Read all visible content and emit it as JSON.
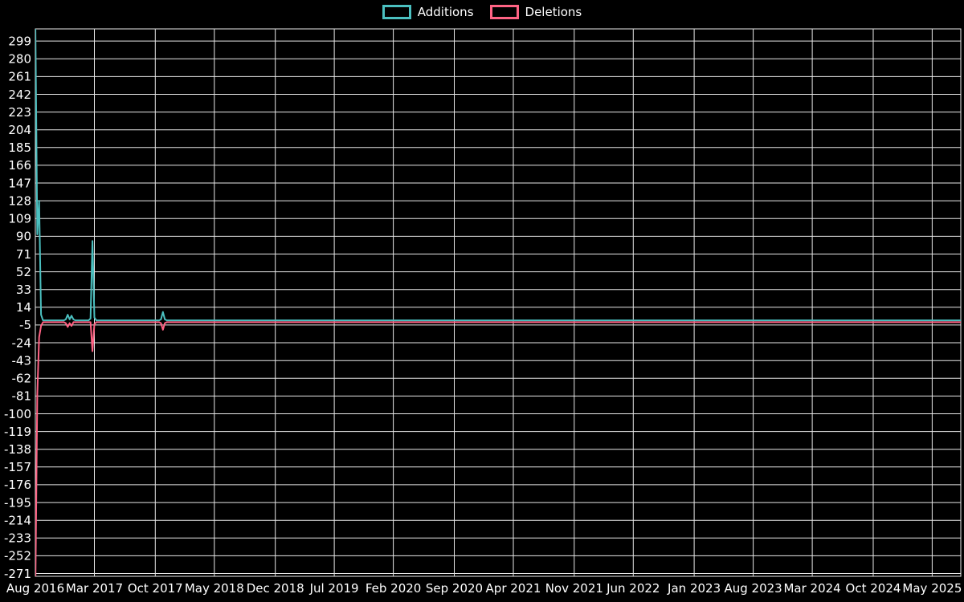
{
  "legend": {
    "items": [
      {
        "label": "Additions",
        "color": "#4bc0c0"
      },
      {
        "label": "Deletions",
        "color": "#ff6384"
      }
    ]
  },
  "chart_data": {
    "type": "line",
    "title": "",
    "xlabel": "",
    "ylabel": "",
    "background_color": "#000000",
    "grid_color": "#e8e8e8",
    "text_color": "#ffffff",
    "grid": true,
    "legend_position": "top-center",
    "x_tick_labels": [
      "Aug 2016",
      "Mar 2017",
      "Oct 2017",
      "May 2018",
      "Dec 2018",
      "Jul 2019",
      "Feb 2020",
      "Sep 2020",
      "Apr 2021",
      "Nov 2021",
      "Jun 2022",
      "Jan 2023",
      "Aug 2023",
      "Mar 2024",
      "Oct 2024",
      "May 2025"
    ],
    "y_tick_values": [
      299,
      280,
      261,
      242,
      223,
      204,
      185,
      166,
      147,
      128,
      109,
      90,
      71,
      52,
      33,
      14,
      -5,
      -24,
      -43,
      -62,
      -81,
      -100,
      -119,
      -138,
      -157,
      -176,
      -195,
      -214,
      -233,
      -252,
      -271
    ],
    "y_axis": {
      "min": -274,
      "max": 312
    },
    "x_axis": {
      "unit": "week",
      "n_points": 487,
      "tick_point_indices": [
        0,
        31,
        63,
        94,
        126,
        157,
        188,
        220,
        251,
        283,
        314,
        346,
        377,
        408,
        440,
        471
      ]
    },
    "series": [
      {
        "name": "Additions",
        "color": "#4bc0c0",
        "baseline": 0,
        "points": [
          [
            0,
            320
          ],
          [
            1,
            92
          ],
          [
            2,
            128
          ],
          [
            3,
            6
          ],
          [
            16,
            1
          ],
          [
            17,
            6
          ],
          [
            18,
            1
          ],
          [
            19,
            5
          ],
          [
            20,
            1
          ],
          [
            29,
            2
          ],
          [
            30,
            85
          ],
          [
            31,
            3
          ],
          [
            66,
            1
          ],
          [
            67,
            9
          ],
          [
            68,
            1
          ]
        ]
      },
      {
        "name": "Deletions",
        "color": "#ff6384",
        "baseline": -2,
        "points": [
          [
            0,
            -290
          ],
          [
            1,
            -80
          ],
          [
            2,
            -18
          ],
          [
            3,
            -6
          ],
          [
            16,
            -3
          ],
          [
            17,
            -7
          ],
          [
            18,
            -3
          ],
          [
            19,
            -6
          ],
          [
            30,
            -33
          ],
          [
            31,
            -4
          ],
          [
            66,
            -3
          ],
          [
            67,
            -10
          ],
          [
            68,
            -3
          ]
        ]
      }
    ]
  }
}
